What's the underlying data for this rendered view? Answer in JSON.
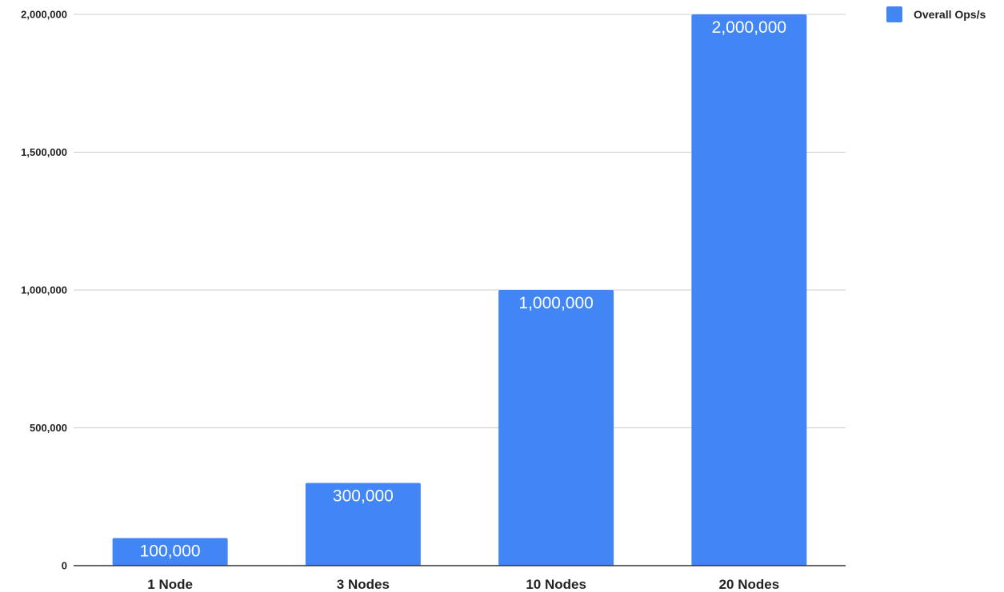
{
  "chart_data": {
    "type": "bar",
    "title": "",
    "xlabel": "",
    "ylabel": "",
    "categories": [
      "1 Node",
      "3 Nodes",
      "10 Nodes",
      "20 Nodes"
    ],
    "series": [
      {
        "name": "Overall Ops/s",
        "color": "#4285f4",
        "values": [
          100000,
          300000,
          1000000,
          2000000
        ],
        "data_labels": [
          "100,000",
          "300,000",
          "1,000,000",
          "2,000,000"
        ]
      }
    ],
    "ylim": [
      0,
      2000000
    ],
    "y_ticks": [
      0,
      500000,
      1000000,
      1500000,
      2000000
    ],
    "y_tick_labels": [
      "0",
      "500,000",
      "1,000,000",
      "1,500,000",
      "2,000,000"
    ],
    "grid": true,
    "legend": {
      "position": "top-right",
      "entries": [
        "Overall Ops/s"
      ]
    }
  }
}
